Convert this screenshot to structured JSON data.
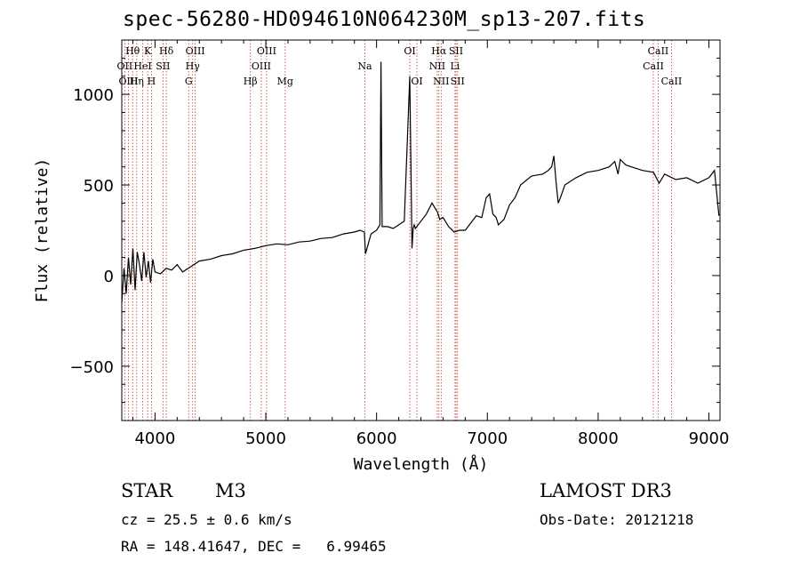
{
  "chart_data": {
    "type": "line",
    "title": "spec-56280-HD094610N064230M_sp13-207.fits",
    "xlabel": "Wavelength (Å)",
    "ylabel": "Flux (relative)",
    "xlim": [
      3700,
      9100
    ],
    "ylim": [
      -800,
      1300
    ],
    "xticks": [
      4000,
      5000,
      6000,
      7000,
      8000,
      9000
    ],
    "yticks": [
      -500,
      0,
      500,
      1000
    ],
    "series": [
      {
        "name": "flux",
        "x": [
          3700,
          3720,
          3740,
          3760,
          3780,
          3800,
          3820,
          3840,
          3860,
          3880,
          3900,
          3920,
          3940,
          3960,
          3980,
          4000,
          4050,
          4100,
          4150,
          4200,
          4250,
          4300,
          4350,
          4400,
          4500,
          4600,
          4700,
          4800,
          4900,
          5000,
          5100,
          5200,
          5300,
          5400,
          5500,
          5600,
          5700,
          5800,
          5850,
          5890,
          5900,
          5950,
          6000,
          6030,
          6040,
          6050,
          6100,
          6150,
          6200,
          6250,
          6300,
          6320,
          6330,
          6340,
          6350,
          6400,
          6450,
          6500,
          6550,
          6570,
          6600,
          6650,
          6700,
          6750,
          6800,
          6900,
          6950,
          6990,
          7020,
          7050,
          7080,
          7100,
          7150,
          7200,
          7250,
          7300,
          7400,
          7500,
          7550,
          7580,
          7600,
          7620,
          7640,
          7660,
          7700,
          7800,
          7900,
          8000,
          8100,
          8150,
          8180,
          8200,
          8250,
          8300,
          8400,
          8500,
          8550,
          8600,
          8700,
          8800,
          8900,
          9000,
          9050,
          9090
        ],
        "y": [
          -150,
          40,
          -100,
          100,
          -50,
          150,
          -80,
          130,
          60,
          -30,
          130,
          -10,
          80,
          -40,
          90,
          20,
          10,
          40,
          30,
          60,
          20,
          40,
          60,
          80,
          90,
          110,
          120,
          140,
          150,
          165,
          175,
          170,
          185,
          190,
          205,
          210,
          230,
          240,
          250,
          240,
          120,
          230,
          250,
          280,
          1180,
          270,
          270,
          260,
          280,
          300,
          1100,
          150,
          260,
          280,
          260,
          300,
          340,
          400,
          350,
          310,
          320,
          270,
          240,
          250,
          250,
          330,
          320,
          430,
          450,
          340,
          320,
          280,
          310,
          390,
          430,
          500,
          550,
          560,
          580,
          600,
          660,
          520,
          400,
          430,
          500,
          540,
          570,
          580,
          600,
          630,
          560,
          640,
          610,
          600,
          580,
          570,
          510,
          560,
          530,
          540,
          510,
          540,
          580,
          330
        ]
      }
    ],
    "lines": [
      {
        "label": "Hθ",
        "wavelength": 3798,
        "row": 1
      },
      {
        "label": "OII",
        "wavelength": 3727,
        "row": 2
      },
      {
        "label": "OIII",
        "wavelength": 3760,
        "row": 3
      },
      {
        "label": "K",
        "wavelength": 3934,
        "row": 1
      },
      {
        "label": "HeI",
        "wavelength": 3889,
        "row": 2
      },
      {
        "label": "Hη",
        "wavelength": 3835,
        "row": 3
      },
      {
        "label": "SII",
        "wavelength": 4072,
        "row": 2
      },
      {
        "label": "H",
        "wavelength": 3968,
        "row": 3
      },
      {
        "label": "Hδ",
        "wavelength": 4102,
        "row": 1
      },
      {
        "label": "OIII",
        "wavelength": 4363,
        "row": 1
      },
      {
        "label": "Hγ",
        "wavelength": 4340,
        "row": 2
      },
      {
        "label": "G",
        "wavelength": 4304,
        "row": 3
      },
      {
        "label": "OIII",
        "wavelength": 5007,
        "row": 1
      },
      {
        "label": "OIII",
        "wavelength": 4959,
        "row": 2
      },
      {
        "label": "Hβ",
        "wavelength": 4861,
        "row": 3
      },
      {
        "label": "Mg",
        "wavelength": 5175,
        "row": 3
      },
      {
        "label": "Na",
        "wavelength": 5894,
        "row": 2
      },
      {
        "label": "OI",
        "wavelength": 6300,
        "row": 1
      },
      {
        "label": "OI",
        "wavelength": 6364,
        "row": 3
      },
      {
        "label": "Hα",
        "wavelength": 6563,
        "row": 1
      },
      {
        "label": "NII",
        "wavelength": 6548,
        "row": 2
      },
      {
        "label": "NII",
        "wavelength": 6583,
        "row": 3
      },
      {
        "label": "SII",
        "wavelength": 6717,
        "row": 1
      },
      {
        "label": "Li",
        "wavelength": 6708,
        "row": 2
      },
      {
        "label": "SII",
        "wavelength": 6731,
        "row": 3
      },
      {
        "label": "CaII",
        "wavelength": 8542,
        "row": 1
      },
      {
        "label": "CaII",
        "wavelength": 8498,
        "row": 2
      },
      {
        "label": "CaII",
        "wavelength": 8662,
        "row": 3
      }
    ]
  },
  "info": {
    "object_class": "STAR",
    "subclass": "M3",
    "survey": "LAMOST DR3",
    "redshift": "cz = 25.5 ± 0.6 km/s",
    "obs_date": "Obs-Date: 20121218",
    "coords": "RA = 148.41647, DEC =   6.99465"
  },
  "colors": {
    "line_marker": "#c0392b",
    "spectrum": "#000000",
    "axes": "#000000"
  }
}
